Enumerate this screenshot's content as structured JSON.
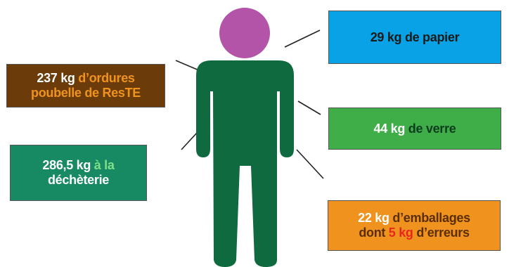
{
  "colors": {
    "head": "#b354a9",
    "body": "#0f6b3f",
    "papier": "#0aa2e6",
    "ordures": "#6b3c0a",
    "verre": "#3fae48",
    "decheterie": "#178a63",
    "emballages": "#f0931e",
    "accent_red": "#e8261e",
    "line": "#222222"
  },
  "boxes": {
    "papier": {
      "amount": "29 kg",
      "text": " de papier"
    },
    "ordures": {
      "amount": "237 kg",
      "text_line1": " d’ordures",
      "text_line2": "poubelle de ResTE"
    },
    "verre": {
      "amount": "44 kg",
      "text": " de verre"
    },
    "decheterie": {
      "amount": "286,5 kg",
      "text_line1": " à la",
      "text_line2": "déchèterie"
    },
    "emballages": {
      "amount": "22 kg",
      "text_line1": " d’emballages",
      "text_line2a": "dont ",
      "errors_amount": "5 kg",
      "text_line2b": " d’erreurs"
    }
  }
}
